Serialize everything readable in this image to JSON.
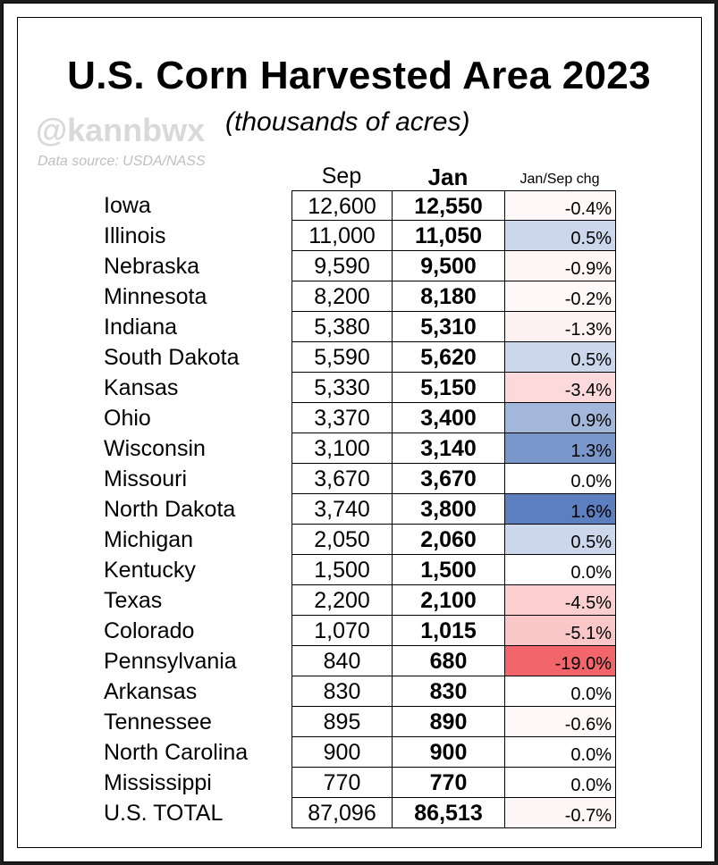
{
  "title": "U.S. Corn Harvested Area 2023",
  "subtitle": "(thousands of acres)",
  "watermark": "@kannbwx",
  "source": "Data source: USDA/NASS",
  "colors": {
    "positive": "#5b7fbf",
    "negative": "#f0555a"
  },
  "chart_data": {
    "type": "table",
    "title": "U.S. Corn Harvested Area 2023",
    "subtitle": "(thousands of acres)",
    "columns": [
      "Sep",
      "Jan",
      "Jan/Sep chg"
    ],
    "rows": [
      {
        "state": "Iowa",
        "sep": "12,600",
        "jan": "12,550",
        "chg": "-0.4%",
        "chg_value": -0.4
      },
      {
        "state": "Illinois",
        "sep": "11,000",
        "jan": "11,050",
        "chg": "0.5%",
        "chg_value": 0.5
      },
      {
        "state": "Nebraska",
        "sep": "9,590",
        "jan": "9,500",
        "chg": "-0.9%",
        "chg_value": -0.9
      },
      {
        "state": "Minnesota",
        "sep": "8,200",
        "jan": "8,180",
        "chg": "-0.2%",
        "chg_value": -0.2
      },
      {
        "state": "Indiana",
        "sep": "5,380",
        "jan": "5,310",
        "chg": "-1.3%",
        "chg_value": -1.3
      },
      {
        "state": "South Dakota",
        "sep": "5,590",
        "jan": "5,620",
        "chg": "0.5%",
        "chg_value": 0.5
      },
      {
        "state": "Kansas",
        "sep": "5,330",
        "jan": "5,150",
        "chg": "-3.4%",
        "chg_value": -3.4
      },
      {
        "state": "Ohio",
        "sep": "3,370",
        "jan": "3,400",
        "chg": "0.9%",
        "chg_value": 0.9
      },
      {
        "state": "Wisconsin",
        "sep": "3,100",
        "jan": "3,140",
        "chg": "1.3%",
        "chg_value": 1.3
      },
      {
        "state": "Missouri",
        "sep": "3,670",
        "jan": "3,670",
        "chg": "0.0%",
        "chg_value": 0.0
      },
      {
        "state": "North Dakota",
        "sep": "3,740",
        "jan": "3,800",
        "chg": "1.6%",
        "chg_value": 1.6
      },
      {
        "state": "Michigan",
        "sep": "2,050",
        "jan": "2,060",
        "chg": "0.5%",
        "chg_value": 0.5
      },
      {
        "state": "Kentucky",
        "sep": "1,500",
        "jan": "1,500",
        "chg": "0.0%",
        "chg_value": 0.0
      },
      {
        "state": "Texas",
        "sep": "2,200",
        "jan": "2,100",
        "chg": "-4.5%",
        "chg_value": -4.5
      },
      {
        "state": "Colorado",
        "sep": "1,070",
        "jan": "1,015",
        "chg": "-5.1%",
        "chg_value": -5.1
      },
      {
        "state": "Pennsylvania",
        "sep": "840",
        "jan": "680",
        "chg": "-19.0%",
        "chg_value": -19.0
      },
      {
        "state": "Arkansas",
        "sep": "830",
        "jan": "830",
        "chg": "0.0%",
        "chg_value": 0.0
      },
      {
        "state": "Tennessee",
        "sep": "895",
        "jan": "890",
        "chg": "-0.6%",
        "chg_value": -0.6
      },
      {
        "state": "North Carolina",
        "sep": "900",
        "jan": "900",
        "chg": "0.0%",
        "chg_value": 0.0
      },
      {
        "state": "Mississippi",
        "sep": "770",
        "jan": "770",
        "chg": "0.0%",
        "chg_value": 0.0
      },
      {
        "state": "U.S. TOTAL",
        "sep": "87,096",
        "jan": "86,513",
        "chg": "-0.7%",
        "chg_value": -0.7
      }
    ]
  }
}
